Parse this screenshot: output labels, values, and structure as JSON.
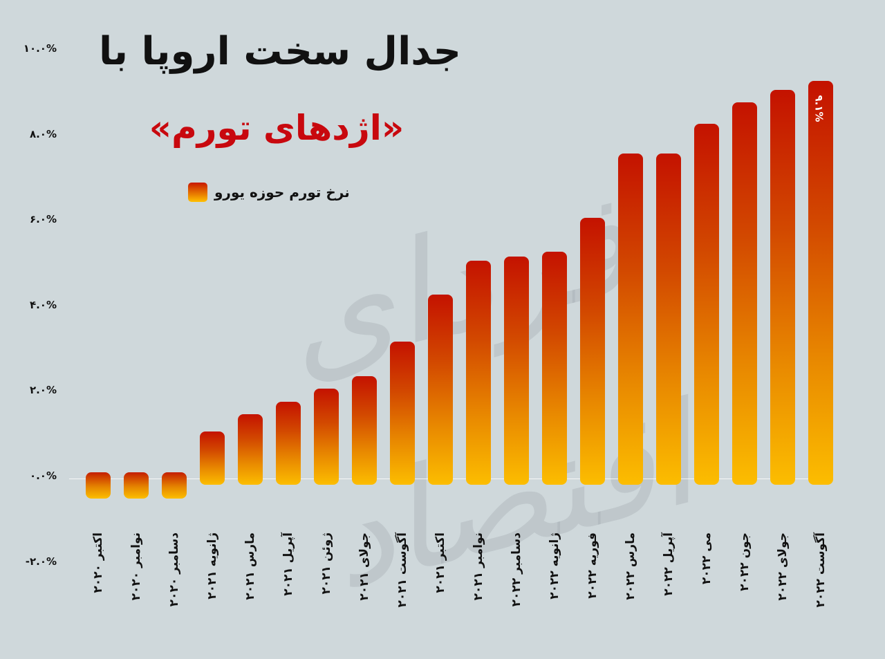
{
  "header": {
    "title": "جدال سخت اروپا با",
    "subtitle": "«اژدهای تورم»"
  },
  "legend": {
    "label": "نرخ تورم حوزه یورو",
    "swatch_colors": [
      "#c81800",
      "#ffc000"
    ]
  },
  "watermark": "فردای اقتصاد",
  "y_axis": {
    "ticks": [
      "۱۰.۰%",
      "۸.۰%",
      "۶.۰%",
      "۴.۰%",
      "۲.۰%",
      "۰.۰%",
      "-۲.۰%"
    ]
  },
  "highlight_label": "۹.۱%",
  "colors": {
    "background": "#cfd8db",
    "bar_top": "#c41200",
    "bar_bottom": "#fcbd00",
    "subtitle": "#c8080e"
  },
  "chart_data": {
    "type": "bar",
    "title": "جدال سخت اروپا با «اژدهای تورم»",
    "legend": [
      "نرخ تورم حوزه یورو"
    ],
    "legend_position": "top-left",
    "xlabel": "",
    "ylabel": "",
    "ylim": [
      -2.0,
      10.0
    ],
    "yticks": [
      -2.0,
      0.0,
      2.0,
      4.0,
      6.0,
      8.0,
      10.0
    ],
    "grid": false,
    "categories": [
      "اکتبر ۲۰۲۰",
      "نوامبر ۲۰۲۰",
      "دسامبر ۲۰۲۰",
      "ژانویه ۲۰۲۱",
      "مارس ۲۰۲۱",
      "آپریل ۲۰۲۱",
      "ژوئن ۲۰۲۱",
      "جولای ۲۰۲۱",
      "آگوست ۲۰۲۱",
      "اکتبر ۲۰۲۱",
      "نوامبر ۲۰۲۱",
      "دسامبر ۲۰۲۲",
      "ژانویه ۲۰۲۲",
      "فوریه ۲۰۲۲",
      "مارس ۲۰۲۲",
      "آپریل ۲۰۲۲",
      "می ۲۰۲۲",
      "جون ۲۰۲۲",
      "جولای ۲۰۲۲",
      "آگوست ۲۰۲۲"
    ],
    "series": [
      {
        "name": "نرخ تورم حوزه یورو",
        "values": [
          -0.3,
          -0.3,
          -0.3,
          0.9,
          1.3,
          1.6,
          1.9,
          2.2,
          3.0,
          4.1,
          4.9,
          5.0,
          5.1,
          5.9,
          7.4,
          7.4,
          8.1,
          8.6,
          8.9,
          9.1
        ]
      }
    ],
    "annotations": [
      {
        "category": "آگوست ۲۰۲۲",
        "text": "۹.۱%"
      }
    ]
  }
}
